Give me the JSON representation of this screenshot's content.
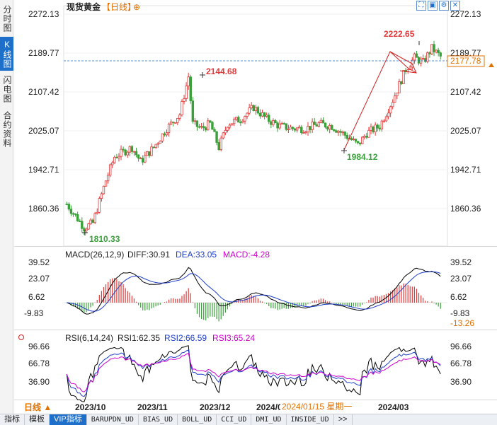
{
  "side_tabs": [
    {
      "label": "分时图",
      "active": false
    },
    {
      "label": "K线图",
      "active": true
    },
    {
      "label": "闪电图",
      "active": false
    },
    {
      "label": "合约资料",
      "active": false
    }
  ],
  "header": {
    "title": "现货黄金",
    "period": "【日线】",
    "zoom_symbol": "⊕"
  },
  "toolbar_icons": [
    "expand-icon",
    "restore-icon",
    "settings-icon",
    "close-icon"
  ],
  "price_axis": {
    "ticks": [
      "2272.13",
      "2189.77",
      "2107.42",
      "2025.07",
      "1942.71",
      "1860.36"
    ],
    "current_price": "2177.78"
  },
  "annotations": {
    "high_label": "2222.65",
    "peak_label": "2144.68",
    "low_label": "1810.33",
    "swing_low_label": "1984.12"
  },
  "macd": {
    "title": "MACD(26,12,9)",
    "diff": "DIFF:30.91",
    "dea": "DEA:33.05",
    "macd": "MACD:-4.28",
    "ticks": [
      "39.52",
      "23.07",
      "6.62",
      "-9.83"
    ],
    "current": "-13.26"
  },
  "rsi": {
    "title": "RSI(6,14,24)",
    "rsi1": "RSI1:62.35",
    "rsi2": "RSI2:66.59",
    "rsi3": "RSI3:65.24",
    "ticks": [
      "96.66",
      "66.78",
      "36.90"
    ]
  },
  "time_axis": {
    "period_label": "日线 ▲",
    "labels": [
      "2023/10",
      "2023/11",
      "2023/12",
      "2024/0",
      "2024/03"
    ],
    "cursor_date": "2024/01/15 星期一"
  },
  "bottom_tabs": [
    {
      "label": "指标",
      "active": false
    },
    {
      "label": "模板",
      "active": false
    },
    {
      "label": "VIP指标",
      "active": true
    },
    {
      "label": "BARUPDN_UD",
      "active": false
    },
    {
      "label": "BIAS_UD",
      "active": false
    },
    {
      "label": "BOLL_UD",
      "active": false
    },
    {
      "label": "CCI_UD",
      "active": false
    },
    {
      "label": "DMI_UD",
      "active": false
    },
    {
      "label": "INSIDE_UD",
      "active": false
    },
    {
      "label": ">>",
      "active": false
    }
  ],
  "colors": {
    "up": "#e03a3a",
    "down": "#3aa13a",
    "accent": "#1e6fc9",
    "diff_line": "#000000",
    "dea_line": "#1e3fc9",
    "macd_label": "#cc00cc",
    "current_price_bg": "#ffffff",
    "current_price_fg": "#e07000"
  }
}
